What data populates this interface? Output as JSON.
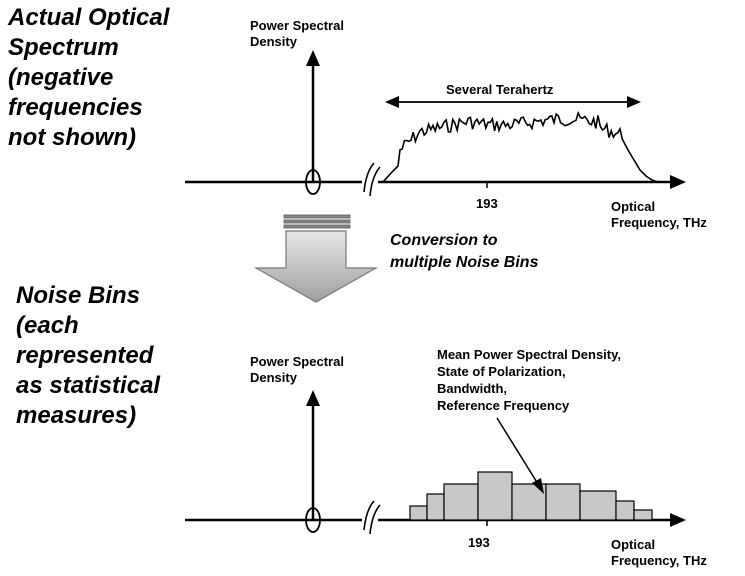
{
  "top_panel": {
    "title": "Actual Optical\nSpectrum\n(negative\nfrequencies\nnot shown)",
    "y_axis_label": "Power Spectral\nDensity",
    "span_label": "Several Terahertz",
    "x_tick": "193",
    "x_axis_label": "Optical\nFrequency, THz"
  },
  "conversion": {
    "label": "Conversion to\nmultiple Noise Bins"
  },
  "bottom_panel": {
    "title": "Noise Bins\n(each\nrepresented\nas statistical\nmeasures)",
    "y_axis_label": "Power Spectral\nDensity",
    "annotation": "Mean Power Spectral Density,\nState of Polarization,\nBandwidth,\nReference Frequency",
    "x_tick": "193",
    "x_axis_label": "Optical\nFrequency, THz"
  },
  "colors": {
    "bin_fill": "#c8c8c8",
    "arrow_fill_light": "#e6e6e6",
    "arrow_fill_dark": "#a0a0a0",
    "stroke": "#000000"
  },
  "noise_bins": [
    0.3,
    0.55,
    0.75,
    0.75,
    1.0,
    0.9,
    0.75,
    0.75,
    0.6,
    0.6,
    0.4,
    0.2
  ]
}
